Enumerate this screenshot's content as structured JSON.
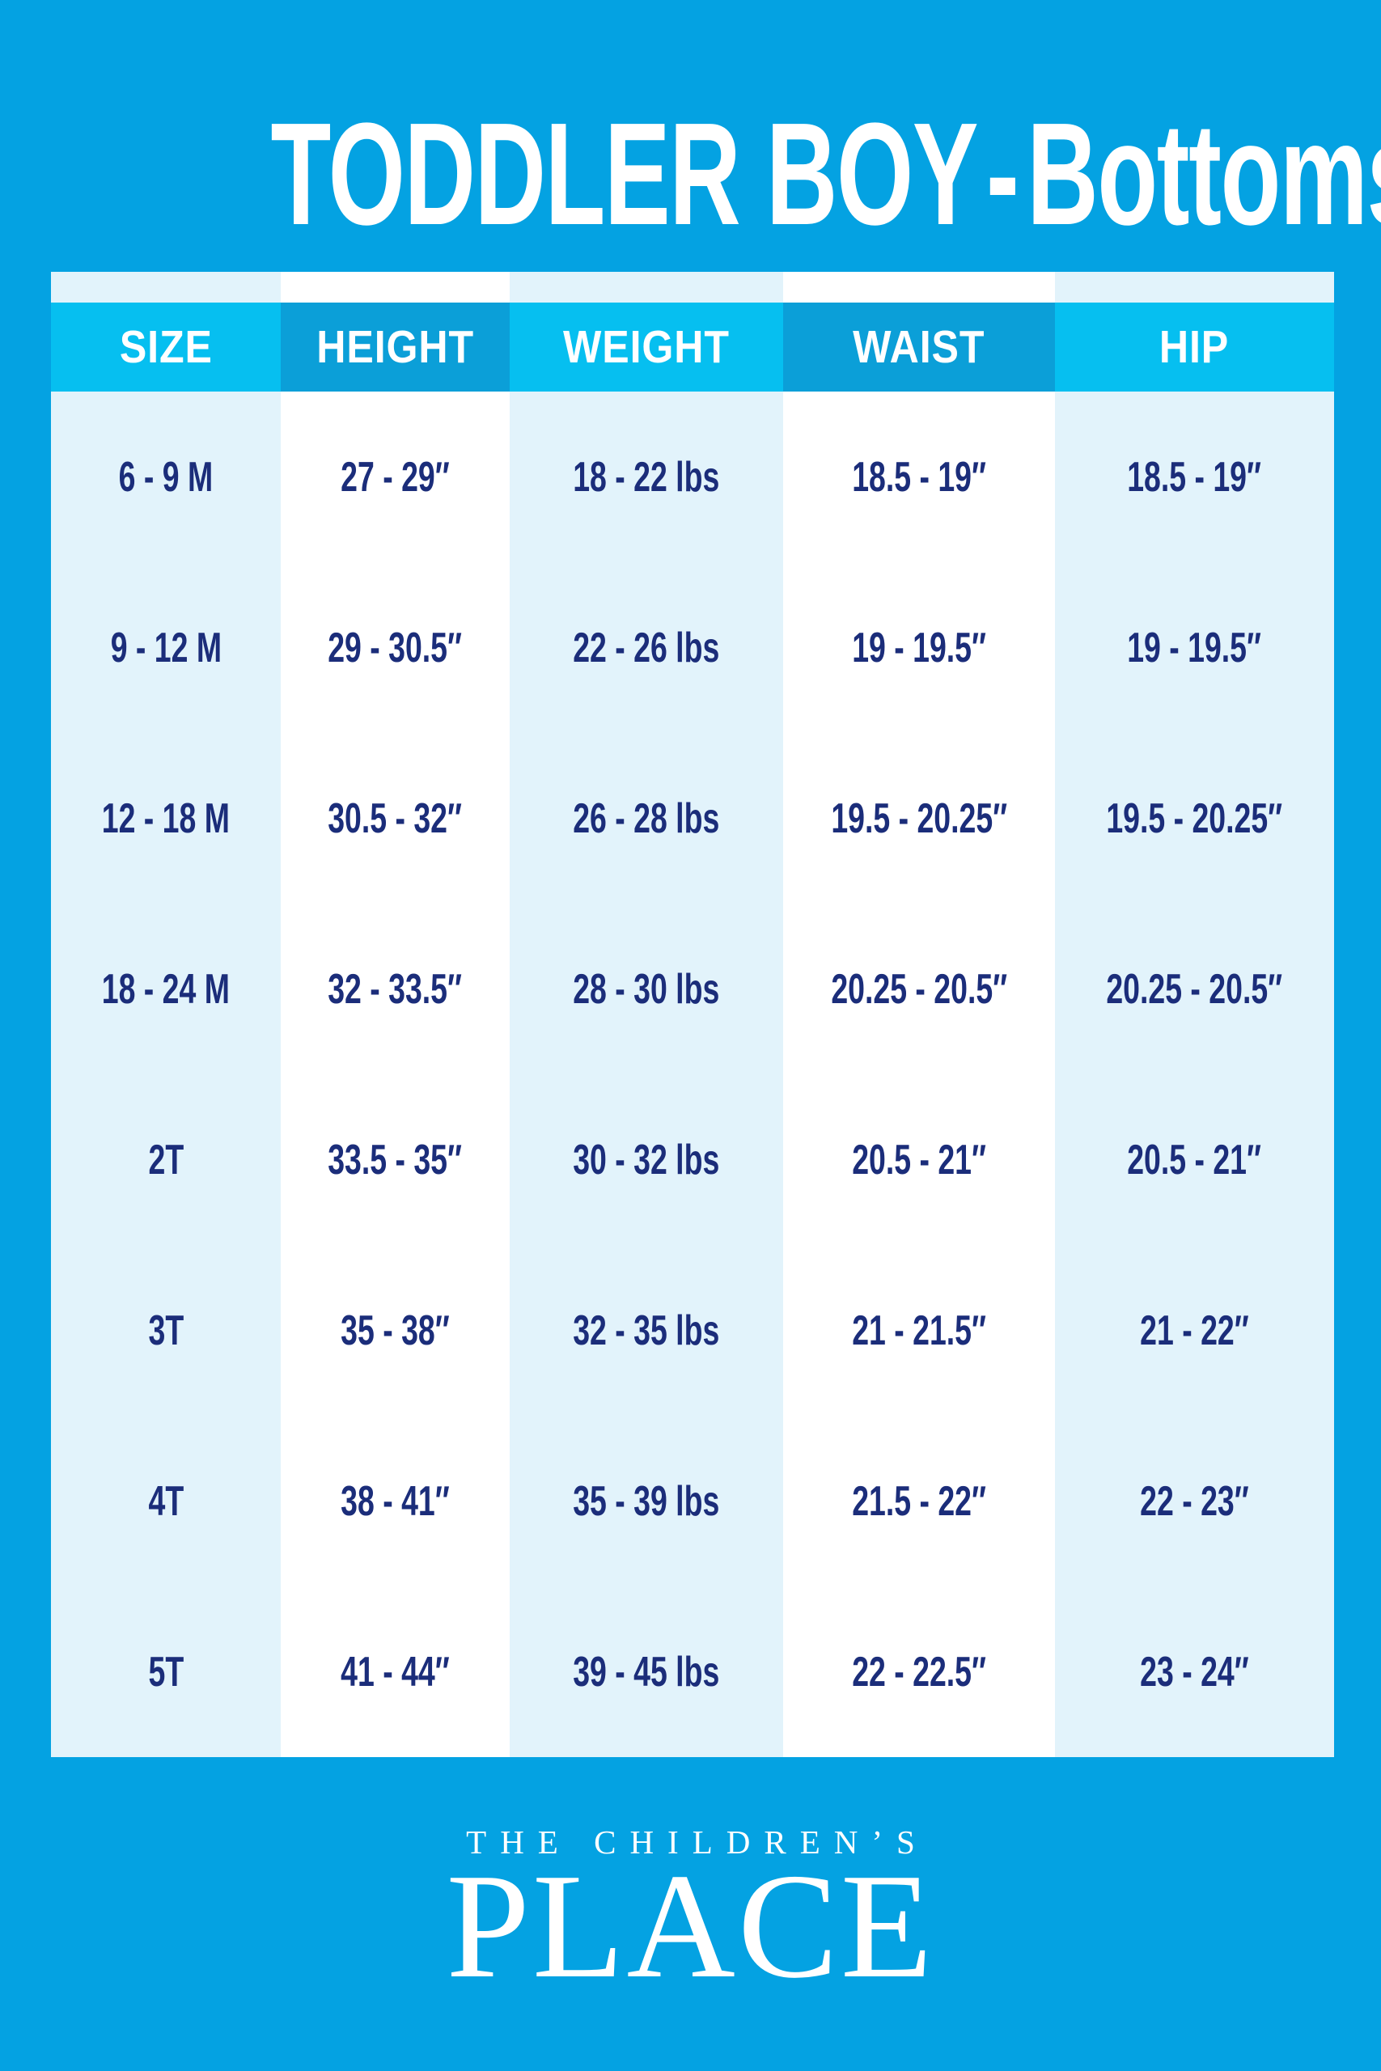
{
  "header": {
    "title_main": "TODDLER BOY",
    "title_dash": "-",
    "title_sub": "Bottoms"
  },
  "chart_data": {
    "type": "table",
    "title": "TODDLER BOY - Bottoms",
    "columns": [
      "SIZE",
      "HEIGHT",
      "WEIGHT",
      "WAIST",
      "HIP"
    ],
    "rows": [
      [
        "6 - 9 M",
        "27 - 29″",
        "18 - 22 lbs",
        "18.5 - 19″",
        "18.5 - 19″"
      ],
      [
        "9 - 12 M",
        "29 - 30.5″",
        "22 - 26 lbs",
        "19 - 19.5″",
        "19 - 19.5″"
      ],
      [
        "12 - 18 M",
        "30.5 - 32″",
        "26 - 28 lbs",
        "19.5 - 20.25″",
        "19.5 - 20.25″"
      ],
      [
        "18 - 24 M",
        "32 - 33.5″",
        "28 - 30 lbs",
        "20.25 - 20.5″",
        "20.25 - 20.5″"
      ],
      [
        "2T",
        "33.5 - 35″",
        "30 - 32 lbs",
        "20.5 - 21″",
        "20.5 - 21″"
      ],
      [
        "3T",
        "35 - 38″",
        "32 - 35 lbs",
        "21 - 21.5″",
        "21 - 22″"
      ],
      [
        "4T",
        "38 - 41″",
        "35 - 39 lbs",
        "21.5 - 22″",
        "22 - 23″"
      ],
      [
        "5T",
        "41 - 44″",
        "39 - 45 lbs",
        "22 - 22.5″",
        "23 - 24″"
      ]
    ]
  },
  "footer": {
    "brand_top": "THE CHILDREN’S",
    "brand_bottom": "PLACE"
  },
  "colors": {
    "background": "#04a2e2",
    "header_cell_light": "#06bff0",
    "header_cell_dark": "#0b9fd8",
    "column_pale": "#e2f3fb",
    "column_white": "#ffffff",
    "header_text": "#ffffff",
    "data_text": "#1b2d7a",
    "title_text": "#ffffff"
  }
}
